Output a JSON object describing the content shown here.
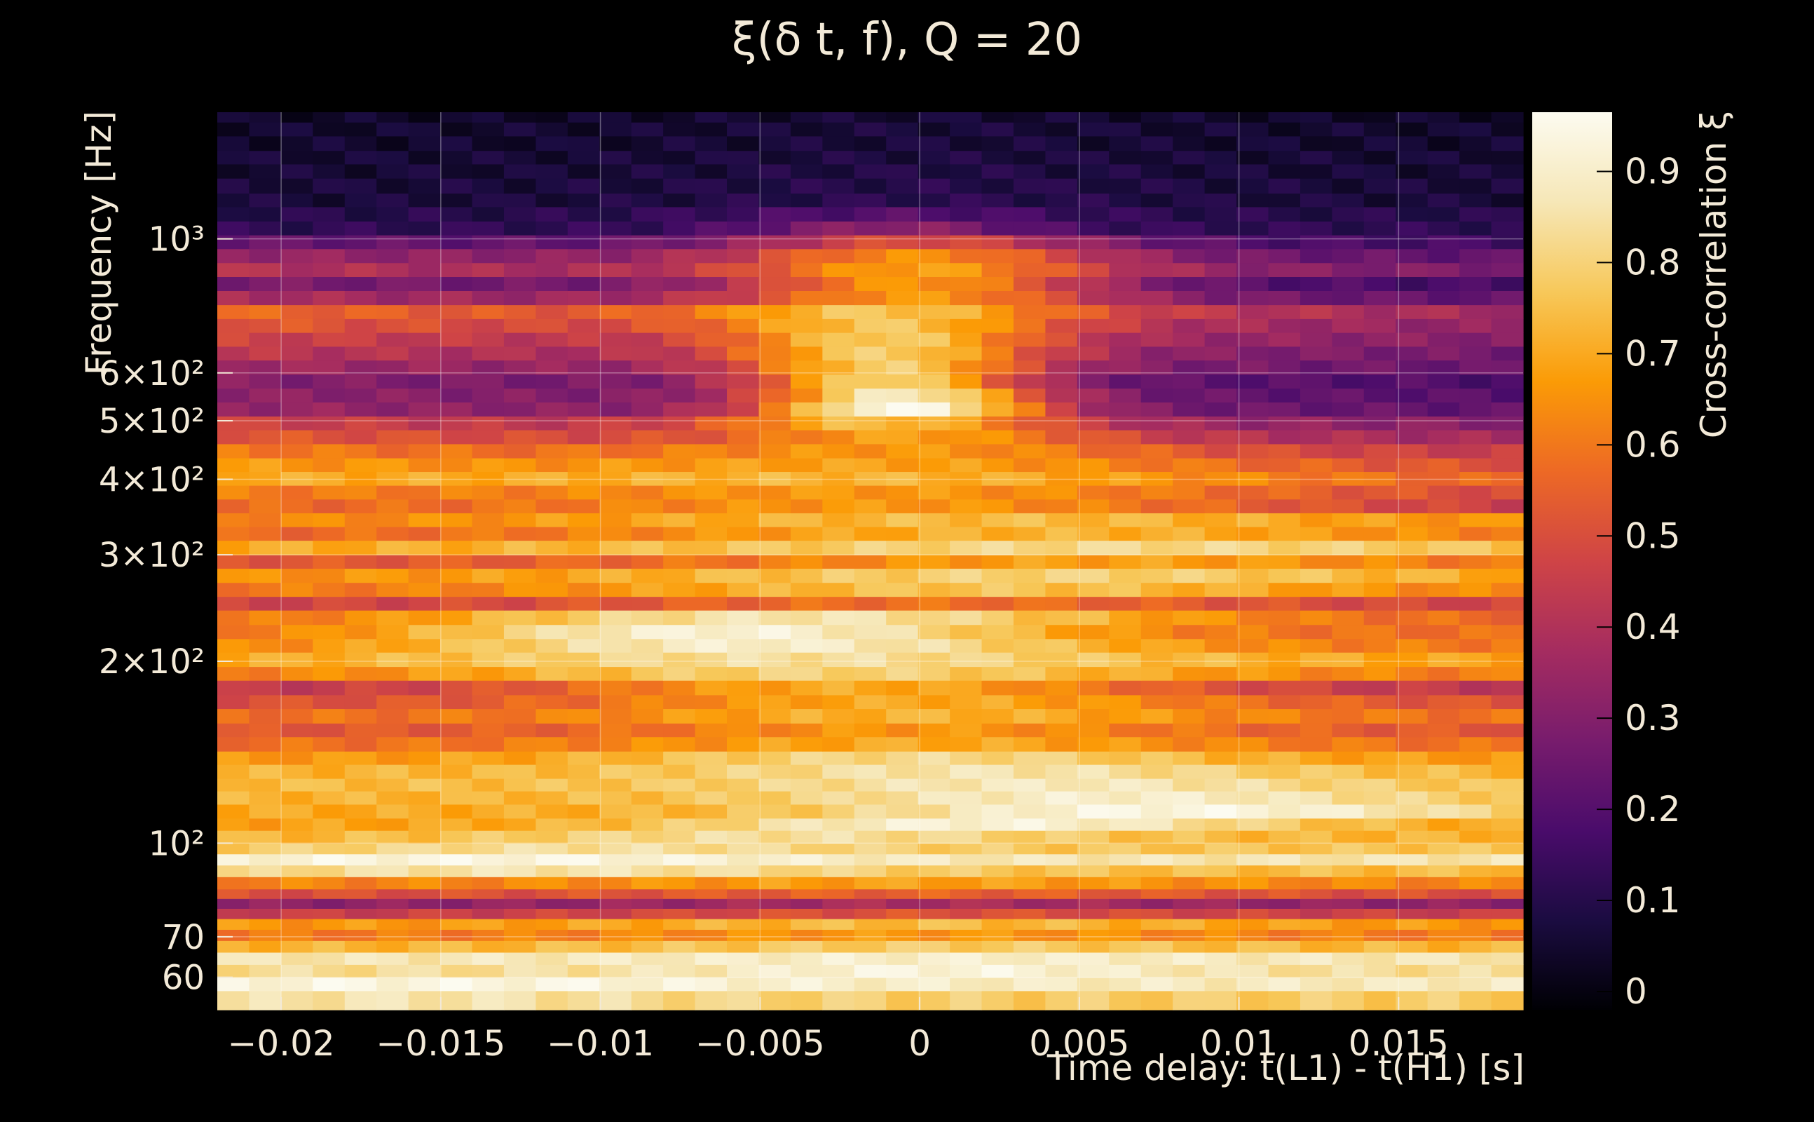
{
  "chart_data": {
    "type": "heatmap",
    "title": "ξ(δ t, f), Q = 20",
    "xlabel": "Time delay: t(L1) - t(H1) [s]",
    "ylabel": "Frequency [Hz]",
    "colorbar_label": "Cross-correlation ξ",
    "xlim": [
      -0.022,
      0.0189
    ],
    "ylim": [
      53,
      1620
    ],
    "yscale": "log",
    "grid": true,
    "x_ticks": [
      {
        "value": -0.02,
        "label": "−0.02"
      },
      {
        "value": -0.015,
        "label": "−0.015"
      },
      {
        "value": -0.01,
        "label": "−0.01"
      },
      {
        "value": -0.005,
        "label": "−0.005"
      },
      {
        "value": 0,
        "label": "0"
      },
      {
        "value": 0.005,
        "label": "0.005"
      },
      {
        "value": 0.01,
        "label": "0.01"
      },
      {
        "value": 0.015,
        "label": "0.015"
      }
    ],
    "y_ticks": [
      {
        "value": 60,
        "label": "60"
      },
      {
        "value": 70,
        "label": "70"
      },
      {
        "value": 100,
        "label": "10²"
      },
      {
        "value": 200,
        "label": "2×10²"
      },
      {
        "value": 300,
        "label": "3×10²"
      },
      {
        "value": 400,
        "label": "4×10²"
      },
      {
        "value": 500,
        "label": "5×10²"
      },
      {
        "value": 600,
        "label": "6×10²"
      },
      {
        "value": 1000,
        "label": "10³"
      }
    ],
    "colorbar_ticks": [
      {
        "value": 0,
        "label": "0"
      },
      {
        "value": 0.1,
        "label": "0.1"
      },
      {
        "value": 0.2,
        "label": "0.2"
      },
      {
        "value": 0.3,
        "label": "0.3"
      },
      {
        "value": 0.4,
        "label": "0.4"
      },
      {
        "value": 0.5,
        "label": "0.5"
      },
      {
        "value": 0.6,
        "label": "0.6"
      },
      {
        "value": 0.7,
        "label": "0.7"
      },
      {
        "value": 0.8,
        "label": "0.8"
      },
      {
        "value": 0.9,
        "label": "0.9"
      }
    ],
    "colorbar_range": [
      -0.02,
      0.965
    ],
    "colormap": [
      "#000004",
      "#1b0c41",
      "#4a0c6b",
      "#781c6d",
      "#a52c60",
      "#cf4446",
      "#ed6925",
      "#fb9b06",
      "#f7c85a",
      "#f6e7b7",
      "#fcfbf0"
    ],
    "time_bins": [
      -0.022,
      0.0189,
      41
    ],
    "frequency_bands": [
      {
        "f_low": 53,
        "f_high": 57,
        "base": 0.78,
        "peak": 0.08,
        "center": -0.016,
        "width": 0.01,
        "slope": 0
      },
      {
        "f_low": 57,
        "f_high": 60,
        "base": 0.88,
        "peak": 0.06,
        "center": -0.015,
        "width": 0.012,
        "slope": 0
      },
      {
        "f_low": 60,
        "f_high": 63,
        "base": 0.83,
        "peak": 0.1,
        "center": 0.0005,
        "width": 0.008,
        "slope": 0
      },
      {
        "f_low": 63,
        "f_high": 66,
        "base": 0.86,
        "peak": 0.04,
        "center": 0,
        "width": 0.012,
        "slope": 0
      },
      {
        "f_low": 66,
        "f_high": 69,
        "base": 0.72,
        "peak": 0.06,
        "center": 0,
        "width": 0.01,
        "slope": 0
      },
      {
        "f_low": 69,
        "f_high": 72,
        "base": 0.6,
        "peak": 0.06,
        "center": 0,
        "width": 0.01,
        "slope": 0
      },
      {
        "f_low": 72,
        "f_high": 75,
        "base": 0.66,
        "peak": 0.08,
        "center": 0,
        "width": 0.01,
        "slope": 0
      },
      {
        "f_low": 75,
        "f_high": 78,
        "base": 0.45,
        "peak": 0.06,
        "center": 0,
        "width": 0.01,
        "slope": 0
      },
      {
        "f_low": 78,
        "f_high": 81,
        "base": 0.32,
        "peak": 0.06,
        "center": 0,
        "width": 0.01,
        "slope": 0
      },
      {
        "f_low": 81,
        "f_high": 84,
        "base": 0.5,
        "peak": 0.05,
        "center": 0,
        "width": 0.01,
        "slope": 0
      },
      {
        "f_low": 84,
        "f_high": 88,
        "base": 0.62,
        "peak": 0.06,
        "center": 0,
        "width": 0.01,
        "slope": 0
      },
      {
        "f_low": 88,
        "f_high": 92,
        "base": 0.74,
        "peak": 0.12,
        "center": -0.012,
        "width": 0.012,
        "slope": 0
      },
      {
        "f_low": 92,
        "f_high": 96,
        "base": 0.86,
        "peak": 0.08,
        "center": -0.014,
        "width": 0.012,
        "slope": 0
      },
      {
        "f_low": 96,
        "f_high": 100,
        "base": 0.76,
        "peak": 0.08,
        "center": -0.01,
        "width": 0.01,
        "slope": 0
      },
      {
        "f_low": 100,
        "f_high": 105,
        "base": 0.72,
        "peak": 0.12,
        "center": -0.004,
        "width": 0.01,
        "slope": 0
      },
      {
        "f_low": 105,
        "f_high": 110,
        "base": 0.68,
        "peak": 0.24,
        "center": 0.002,
        "width": 0.01,
        "slope": 0
      },
      {
        "f_low": 110,
        "f_high": 116,
        "base": 0.7,
        "peak": 0.24,
        "center": 0.008,
        "width": 0.011,
        "slope": 0
      },
      {
        "f_low": 116,
        "f_high": 122,
        "base": 0.72,
        "peak": 0.18,
        "center": 0.006,
        "width": 0.011,
        "slope": 0
      },
      {
        "f_low": 122,
        "f_high": 128,
        "base": 0.74,
        "peak": 0.14,
        "center": 0.004,
        "width": 0.01,
        "slope": 0
      },
      {
        "f_low": 128,
        "f_high": 135,
        "base": 0.72,
        "peak": 0.14,
        "center": 0.002,
        "width": 0.01,
        "slope": 0
      },
      {
        "f_low": 135,
        "f_high": 142,
        "base": 0.66,
        "peak": 0.16,
        "center": 0,
        "width": 0.01,
        "slope": 0
      },
      {
        "f_low": 142,
        "f_high": 150,
        "base": 0.58,
        "peak": 0.12,
        "center": 0,
        "width": 0.01,
        "slope": 0
      },
      {
        "f_low": 150,
        "f_high": 158,
        "base": 0.52,
        "peak": 0.14,
        "center": 0,
        "width": 0.01,
        "slope": 0
      },
      {
        "f_low": 158,
        "f_high": 167,
        "base": 0.58,
        "peak": 0.14,
        "center": 0,
        "width": 0.01,
        "slope": 0
      },
      {
        "f_low": 167,
        "f_high": 176,
        "base": 0.5,
        "peak": 0.2,
        "center": 0,
        "width": 0.011,
        "slope": 0
      },
      {
        "f_low": 176,
        "f_high": 186,
        "base": 0.42,
        "peak": 0.28,
        "center": -0.002,
        "width": 0.011,
        "slope": 0
      },
      {
        "f_low": 186,
        "f_high": 196,
        "base": 0.6,
        "peak": 0.2,
        "center": -0.003,
        "width": 0.012,
        "slope": 0
      },
      {
        "f_low": 196,
        "f_high": 207,
        "base": 0.68,
        "peak": 0.16,
        "center": -0.004,
        "width": 0.012,
        "slope": 0
      },
      {
        "f_low": 207,
        "f_high": 218,
        "base": 0.6,
        "peak": 0.3,
        "center": -0.005,
        "width": 0.011,
        "slope": 0
      },
      {
        "f_low": 218,
        "f_high": 230,
        "base": 0.58,
        "peak": 0.34,
        "center": -0.006,
        "width": 0.01,
        "slope": 0
      },
      {
        "f_low": 230,
        "f_high": 243,
        "base": 0.56,
        "peak": 0.3,
        "center": -0.004,
        "width": 0.012,
        "slope": 0
      },
      {
        "f_low": 243,
        "f_high": 256,
        "base": 0.46,
        "peak": 0.12,
        "center": 0,
        "width": 0.012,
        "slope": 0
      },
      {
        "f_low": 256,
        "f_high": 270,
        "base": 0.6,
        "peak": 0.16,
        "center": 0.002,
        "width": 0.012,
        "slope": 0
      },
      {
        "f_low": 270,
        "f_high": 285,
        "base": 0.64,
        "peak": 0.16,
        "center": 0.004,
        "width": 0.014,
        "slope": 0
      },
      {
        "f_low": 285,
        "f_high": 300,
        "base": 0.52,
        "peak": 0.16,
        "center": 0.006,
        "width": 0.014,
        "slope": 0
      },
      {
        "f_low": 300,
        "f_high": 317,
        "base": 0.7,
        "peak": 0.12,
        "center": 0.006,
        "width": 0.014,
        "slope": 0
      },
      {
        "f_low": 317,
        "f_high": 334,
        "base": 0.56,
        "peak": 0.16,
        "center": 0.004,
        "width": 0.014,
        "slope": 0
      },
      {
        "f_low": 334,
        "f_high": 352,
        "base": 0.62,
        "peak": 0.12,
        "center": 0.002,
        "width": 0.014,
        "slope": 0
      },
      {
        "f_low": 352,
        "f_high": 371,
        "base": 0.5,
        "peak": 0.16,
        "center": 0,
        "width": 0.012,
        "slope": -3
      },
      {
        "f_low": 371,
        "f_high": 391,
        "base": 0.54,
        "peak": 0.12,
        "center": 0,
        "width": 0.012,
        "slope": -3
      },
      {
        "f_low": 391,
        "f_high": 412,
        "base": 0.62,
        "peak": 0.1,
        "center": 0,
        "width": 0.012,
        "slope": -4
      },
      {
        "f_low": 412,
        "f_high": 434,
        "base": 0.58,
        "peak": 0.1,
        "center": 0,
        "width": 0.01,
        "slope": -4
      },
      {
        "f_low": 434,
        "f_high": 458,
        "base": 0.52,
        "peak": 0.14,
        "center": 0,
        "width": 0.008,
        "slope": -4
      },
      {
        "f_low": 458,
        "f_high": 483,
        "base": 0.44,
        "peak": 0.24,
        "center": 0,
        "width": 0.006,
        "slope": -4
      },
      {
        "f_low": 483,
        "f_high": 509,
        "base": 0.38,
        "peak": 0.36,
        "center": -0.001,
        "width": 0.0055,
        "slope": -4
      },
      {
        "f_low": 509,
        "f_high": 537,
        "base": 0.28,
        "peak": 0.68,
        "center": -0.0005,
        "width": 0.0045,
        "slope": -3
      },
      {
        "f_low": 537,
        "f_high": 566,
        "base": 0.26,
        "peak": 0.62,
        "center": -0.0005,
        "width": 0.0045,
        "slope": -3
      },
      {
        "f_low": 566,
        "f_high": 597,
        "base": 0.24,
        "peak": 0.56,
        "center": -0.001,
        "width": 0.0045,
        "slope": -3
      },
      {
        "f_low": 597,
        "f_high": 630,
        "base": 0.3,
        "peak": 0.48,
        "center": -0.001,
        "width": 0.0048,
        "slope": -3
      },
      {
        "f_low": 630,
        "f_high": 664,
        "base": 0.34,
        "peak": 0.44,
        "center": -0.001,
        "width": 0.005,
        "slope": -4
      },
      {
        "f_low": 664,
        "f_high": 700,
        "base": 0.38,
        "peak": 0.4,
        "center": -0.001,
        "width": 0.005,
        "slope": -4
      },
      {
        "f_low": 700,
        "f_high": 738,
        "base": 0.42,
        "peak": 0.34,
        "center": -0.001,
        "width": 0.0055,
        "slope": -5
      },
      {
        "f_low": 738,
        "f_high": 778,
        "base": 0.46,
        "peak": 0.3,
        "center": -0.001,
        "width": 0.006,
        "slope": -5
      },
      {
        "f_low": 778,
        "f_high": 821,
        "base": 0.3,
        "peak": 0.36,
        "center": 0,
        "width": 0.006,
        "slope": -4
      },
      {
        "f_low": 821,
        "f_high": 866,
        "base": 0.22,
        "peak": 0.44,
        "center": 0,
        "width": 0.006,
        "slope": -3
      },
      {
        "f_low": 866,
        "f_high": 913,
        "base": 0.34,
        "peak": 0.34,
        "center": 0,
        "width": 0.006,
        "slope": -3
      },
      {
        "f_low": 913,
        "f_high": 963,
        "base": 0.28,
        "peak": 0.36,
        "center": 0,
        "width": 0.006,
        "slope": -3
      },
      {
        "f_low": 963,
        "f_high": 1015,
        "base": 0.2,
        "peak": 0.3,
        "center": 0,
        "width": 0.006,
        "slope": -2
      },
      {
        "f_low": 1015,
        "f_high": 1070,
        "base": 0.12,
        "peak": 0.2,
        "center": -0.001,
        "width": 0.005,
        "slope": 0
      },
      {
        "f_low": 1070,
        "f_high": 1130,
        "base": 0.1,
        "peak": 0.1,
        "center": -0.001,
        "width": 0.006,
        "slope": 0
      },
      {
        "f_low": 1130,
        "f_high": 1190,
        "base": 0.07,
        "peak": 0.04,
        "center": 0,
        "width": 0.008,
        "slope": 0
      },
      {
        "f_low": 1190,
        "f_high": 1260,
        "base": 0.07,
        "peak": 0.03,
        "center": 0,
        "width": 0.008,
        "slope": 0
      },
      {
        "f_low": 1260,
        "f_high": 1330,
        "base": 0.06,
        "peak": 0.03,
        "center": 0,
        "width": 0.008,
        "slope": 0
      },
      {
        "f_low": 1330,
        "f_high": 1400,
        "base": 0.06,
        "peak": 0.02,
        "center": 0,
        "width": 0.008,
        "slope": 0
      },
      {
        "f_low": 1400,
        "f_high": 1480,
        "base": 0.05,
        "peak": 0.02,
        "center": 0,
        "width": 0.008,
        "slope": 0
      },
      {
        "f_low": 1480,
        "f_high": 1560,
        "base": 0.05,
        "peak": 0.02,
        "center": 0,
        "width": 0.008,
        "slope": 0
      },
      {
        "f_low": 1560,
        "f_high": 1620,
        "base": 0.04,
        "peak": 0.02,
        "center": 0,
        "width": 0.008,
        "slope": 0
      }
    ]
  }
}
